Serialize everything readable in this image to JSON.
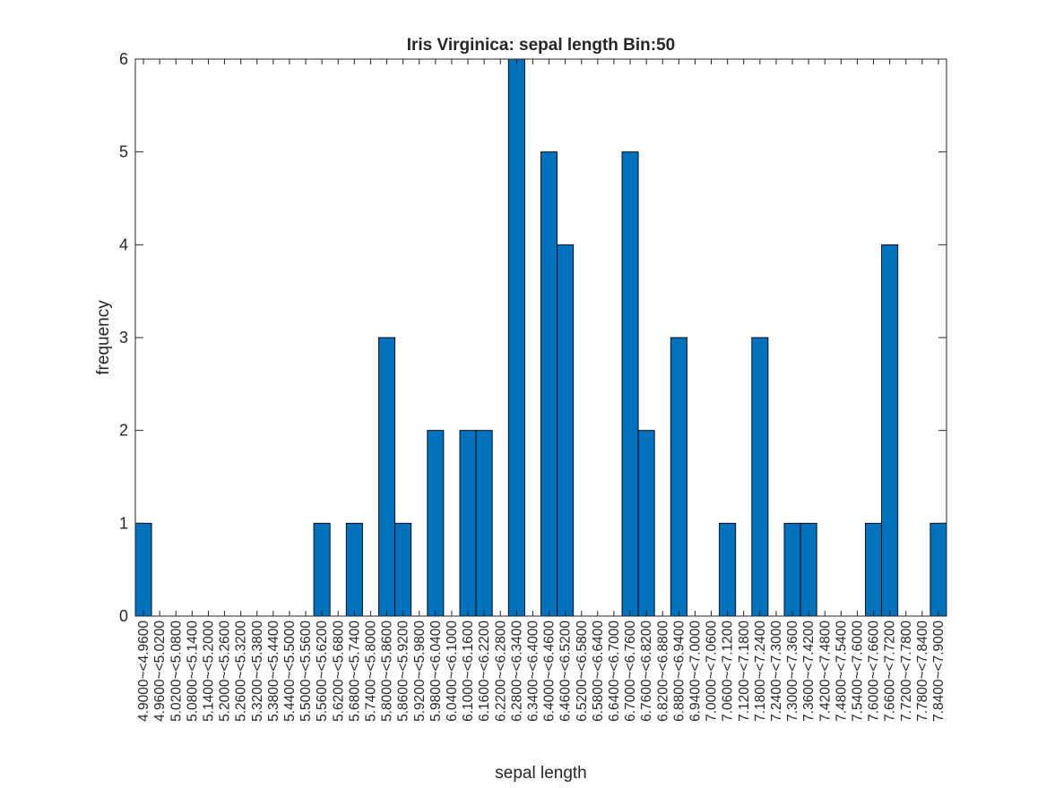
{
  "chart_data": {
    "type": "bar",
    "title": "Iris Virginica: sepal length Bin:50",
    "xlabel": "sepal length",
    "ylabel": "frequency",
    "ylim": [
      0,
      6
    ],
    "yticks": [
      "0",
      "1",
      "2",
      "3",
      "4",
      "5",
      "6"
    ],
    "grid": false,
    "bar_color": "#0072BD",
    "categories": [
      "4.9000~<4.9600",
      "4.9600~<5.0200",
      "5.0200~<5.0800",
      "5.0800~<5.1400",
      "5.1400~<5.2000",
      "5.2000~<5.2600",
      "5.2600~<5.3200",
      "5.3200~<5.3800",
      "5.3800~<5.4400",
      "5.4400~<5.5000",
      "5.5000~<5.5600",
      "5.5600~<5.6200",
      "5.6200~<5.6800",
      "5.6800~<5.7400",
      "5.7400~<5.8000",
      "5.8000~<5.8600",
      "5.8600~<5.9200",
      "5.9200~<5.9800",
      "5.9800~<6.0400",
      "6.0400~<6.1000",
      "6.1000~<6.1600",
      "6.1600~<6.2200",
      "6.2200~<6.2800",
      "6.2800~<6.3400",
      "6.3400~<6.4000",
      "6.4000~<6.4600",
      "6.4600~<6.5200",
      "6.5200~<6.5800",
      "6.5800~<6.6400",
      "6.6400~<6.7000",
      "6.7000~<6.7600",
      "6.7600~<6.8200",
      "6.8200~<6.8800",
      "6.8800~<6.9400",
      "6.9400~<7.0000",
      "7.0000~<7.0600",
      "7.0600~<7.1200",
      "7.1200~<7.1800",
      "7.1800~<7.2400",
      "7.2400~<7.3000",
      "7.3000~<7.3600",
      "7.3600~<7.4200",
      "7.4200~<7.4800",
      "7.4800~<7.5400",
      "7.5400~<7.6000",
      "7.6000~<7.6600",
      "7.6600~<7.7200",
      "7.7200~<7.7800",
      "7.7800~<7.8400",
      "7.8400~<7.9000"
    ],
    "values": [
      1,
      0,
      0,
      0,
      0,
      0,
      0,
      0,
      0,
      0,
      0,
      1,
      0,
      1,
      0,
      3,
      1,
      0,
      2,
      0,
      2,
      2,
      0,
      6,
      0,
      5,
      4,
      0,
      0,
      0,
      5,
      2,
      0,
      3,
      0,
      0,
      1,
      0,
      3,
      0,
      1,
      1,
      0,
      0,
      0,
      1,
      4,
      0,
      0,
      1
    ]
  }
}
